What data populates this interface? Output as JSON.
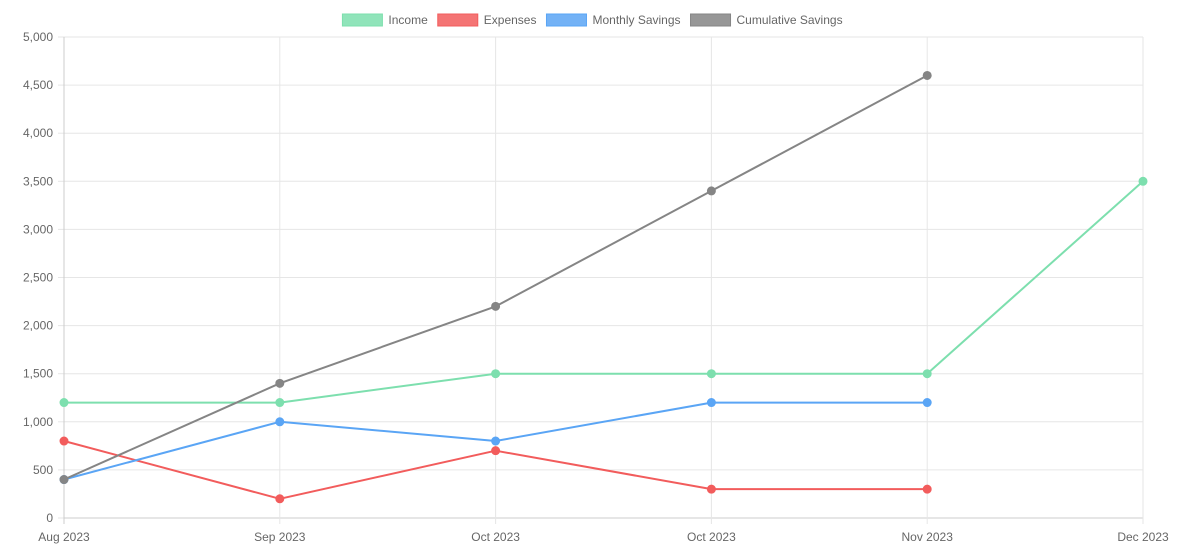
{
  "chart_data": {
    "type": "line",
    "categories": [
      "Aug 2023",
      "Sep 2023",
      "Oct 2023",
      "Oct 2023",
      "Nov 2023",
      "Dec 2023"
    ],
    "ylim": [
      0,
      5000
    ],
    "y_ticks": [
      "0",
      "500",
      "1,000",
      "1,500",
      "2,000",
      "2,500",
      "3,000",
      "3,500",
      "4,000",
      "4,500",
      "5,000"
    ],
    "grid": true,
    "legend_position": "top-center",
    "series": [
      {
        "name": "Income",
        "color": "#7ddfae",
        "values": [
          1200,
          1200,
          1500,
          1500,
          1500,
          3500
        ]
      },
      {
        "name": "Expenses",
        "color": "#f25c5c",
        "values": [
          800,
          200,
          700,
          300,
          300,
          null
        ]
      },
      {
        "name": "Monthly Savings",
        "color": "#5aa5f5",
        "values": [
          400,
          1000,
          800,
          1200,
          1200,
          null
        ]
      },
      {
        "name": "Cumulative Savings",
        "color": "#858585",
        "values": [
          400,
          1400,
          2200,
          3400,
          4600,
          null
        ]
      }
    ]
  }
}
